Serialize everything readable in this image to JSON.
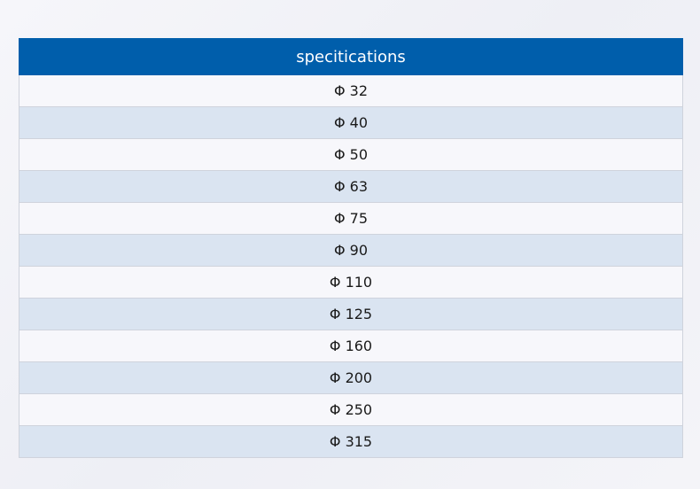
{
  "table": {
    "header": "specitications",
    "rows": [
      "Φ 32",
      "Φ 40",
      "Φ 50",
      "Φ 63",
      "Φ 75",
      "Φ 90",
      "Φ 110",
      "Φ 125",
      "Φ 160",
      "Φ 200",
      "Φ 250",
      "Φ 315"
    ]
  },
  "colors": {
    "header_bg": "#005eab",
    "row_light": "#f7f7fb",
    "row_striped": "#dae4f1"
  }
}
